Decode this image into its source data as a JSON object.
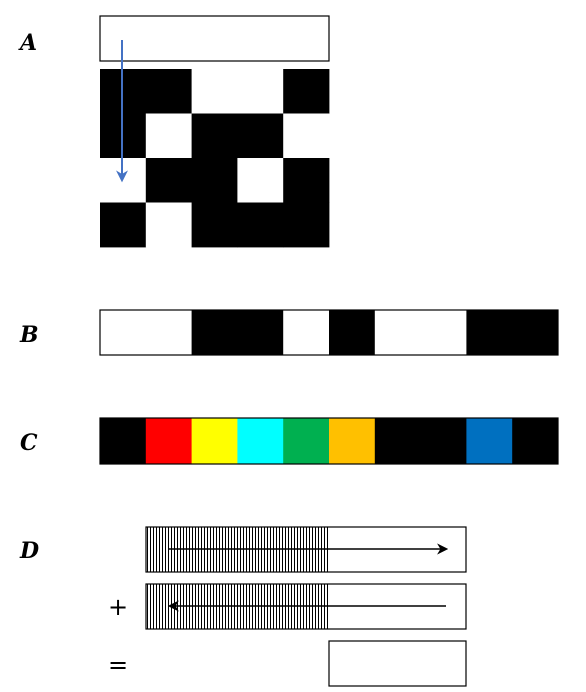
{
  "panels": {
    "a": {
      "letter": "A"
    },
    "b": {
      "letter": "B"
    },
    "c": {
      "letter": "C"
    },
    "d": {
      "letter": "D"
    }
  },
  "grid_a": {
    "rows": [
      [
        1,
        1,
        0,
        0,
        1
      ],
      [
        1,
        0,
        1,
        1,
        0
      ],
      [
        0,
        1,
        1,
        0,
        1
      ],
      [
        1,
        0,
        1,
        1,
        1
      ]
    ],
    "arrow_color": "#4472C4"
  },
  "strip_b": [
    0,
    0,
    1,
    1,
    0,
    1,
    0,
    0,
    1,
    1
  ],
  "strip_c": [
    "#000000",
    "#FF0000",
    "#FFFF00",
    "#00FFFF",
    "#00B050",
    "#FFC000",
    "#000000",
    "#000000",
    "#0070C0",
    "#000000"
  ],
  "equation_d": {
    "plus": "+",
    "equals": "="
  }
}
